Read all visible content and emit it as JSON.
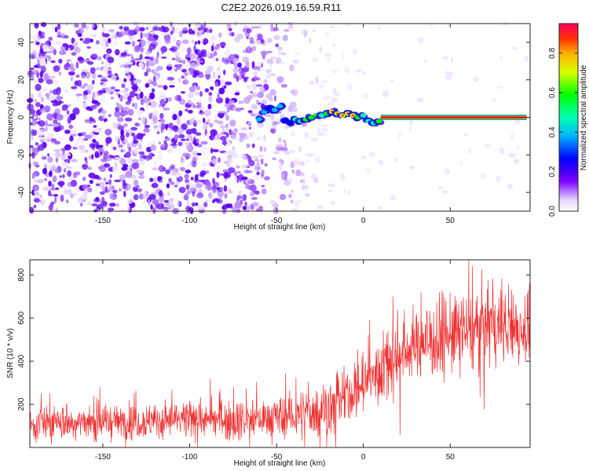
{
  "title": "C2E2.2026.019.16.59.R11",
  "chart_data": [
    {
      "type": "heatmap",
      "xlabel": "Height of straight line (km)",
      "ylabel": "Frequency (Hz)",
      "xlim": [
        -192,
        96
      ],
      "ylim": [
        -50,
        50
      ],
      "xticks": [
        -150,
        -100,
        -50,
        0,
        50
      ],
      "yticks": [
        -40,
        -20,
        0,
        20,
        40
      ],
      "colorbar": {
        "label": "Normalized spectral amplitude",
        "range": [
          0.0,
          0.95
        ],
        "ticks": [
          "0.0",
          "0.2",
          "0.4",
          "0.6",
          "0.8"
        ],
        "tick_values": [
          0.0,
          0.2,
          0.4,
          0.6,
          0.8
        ]
      },
      "signal_track": {
        "description_x_km": [
          -60,
          -57,
          -54,
          -51,
          -48,
          -45,
          -42,
          -39,
          -36,
          -33,
          -30,
          -27,
          -24,
          -21,
          -18,
          -15,
          -12,
          -9,
          -6,
          -3,
          0,
          3,
          6,
          9,
          12,
          20,
          40,
          60,
          80,
          95
        ],
        "frequency_hz": [
          -1,
          3,
          5,
          4,
          6,
          -2,
          -3,
          -1,
          -2,
          -1,
          0,
          1,
          1,
          2,
          3,
          2,
          1,
          2,
          1,
          0,
          1,
          -2,
          -3,
          -2,
          0,
          0,
          0,
          0,
          0,
          0
        ],
        "amplitude": [
          0.35,
          0.4,
          0.3,
          0.4,
          0.35,
          0.3,
          0.3,
          0.45,
          0.5,
          0.55,
          0.55,
          0.6,
          0.5,
          0.55,
          0.7,
          0.75,
          0.7,
          0.75,
          0.7,
          0.6,
          0.5,
          0.45,
          0.5,
          0.55,
          0.75,
          0.9,
          0.9,
          0.9,
          0.9,
          0.85
        ]
      },
      "noise_profile": {
        "x_km": [
          -192,
          -100,
          -70,
          -60,
          -50,
          -40,
          -30,
          -20,
          -10,
          0,
          96
        ],
        "density": [
          1.0,
          1.0,
          0.9,
          0.75,
          0.55,
          0.35,
          0.2,
          0.12,
          0.07,
          0.05,
          0.03
        ]
      }
    },
    {
      "type": "line",
      "xlabel": "Height of straight line (km)",
      "ylabel": "SNR (10 * v/v)",
      "xlim": [
        -192,
        96
      ],
      "ylim": [
        0,
        870
      ],
      "xticks": [
        -150,
        -100,
        -50,
        0,
        50
      ],
      "yticks": [
        200,
        400,
        600,
        800
      ],
      "color": "#ee3333",
      "mean_profile": {
        "x": [
          -192,
          -150,
          -100,
          -70,
          -50,
          -40,
          -30,
          -20,
          -10,
          0,
          10,
          20,
          30,
          50,
          70,
          96
        ],
        "snr": [
          110,
          120,
          125,
          130,
          135,
          150,
          160,
          190,
          230,
          290,
          360,
          430,
          480,
          520,
          550,
          560
        ]
      },
      "noise_band": {
        "x": [
          -192,
          -100,
          -50,
          0,
          20,
          50,
          96
        ],
        "amplitude": [
          70,
          75,
          90,
          120,
          160,
          180,
          170
        ]
      }
    }
  ]
}
